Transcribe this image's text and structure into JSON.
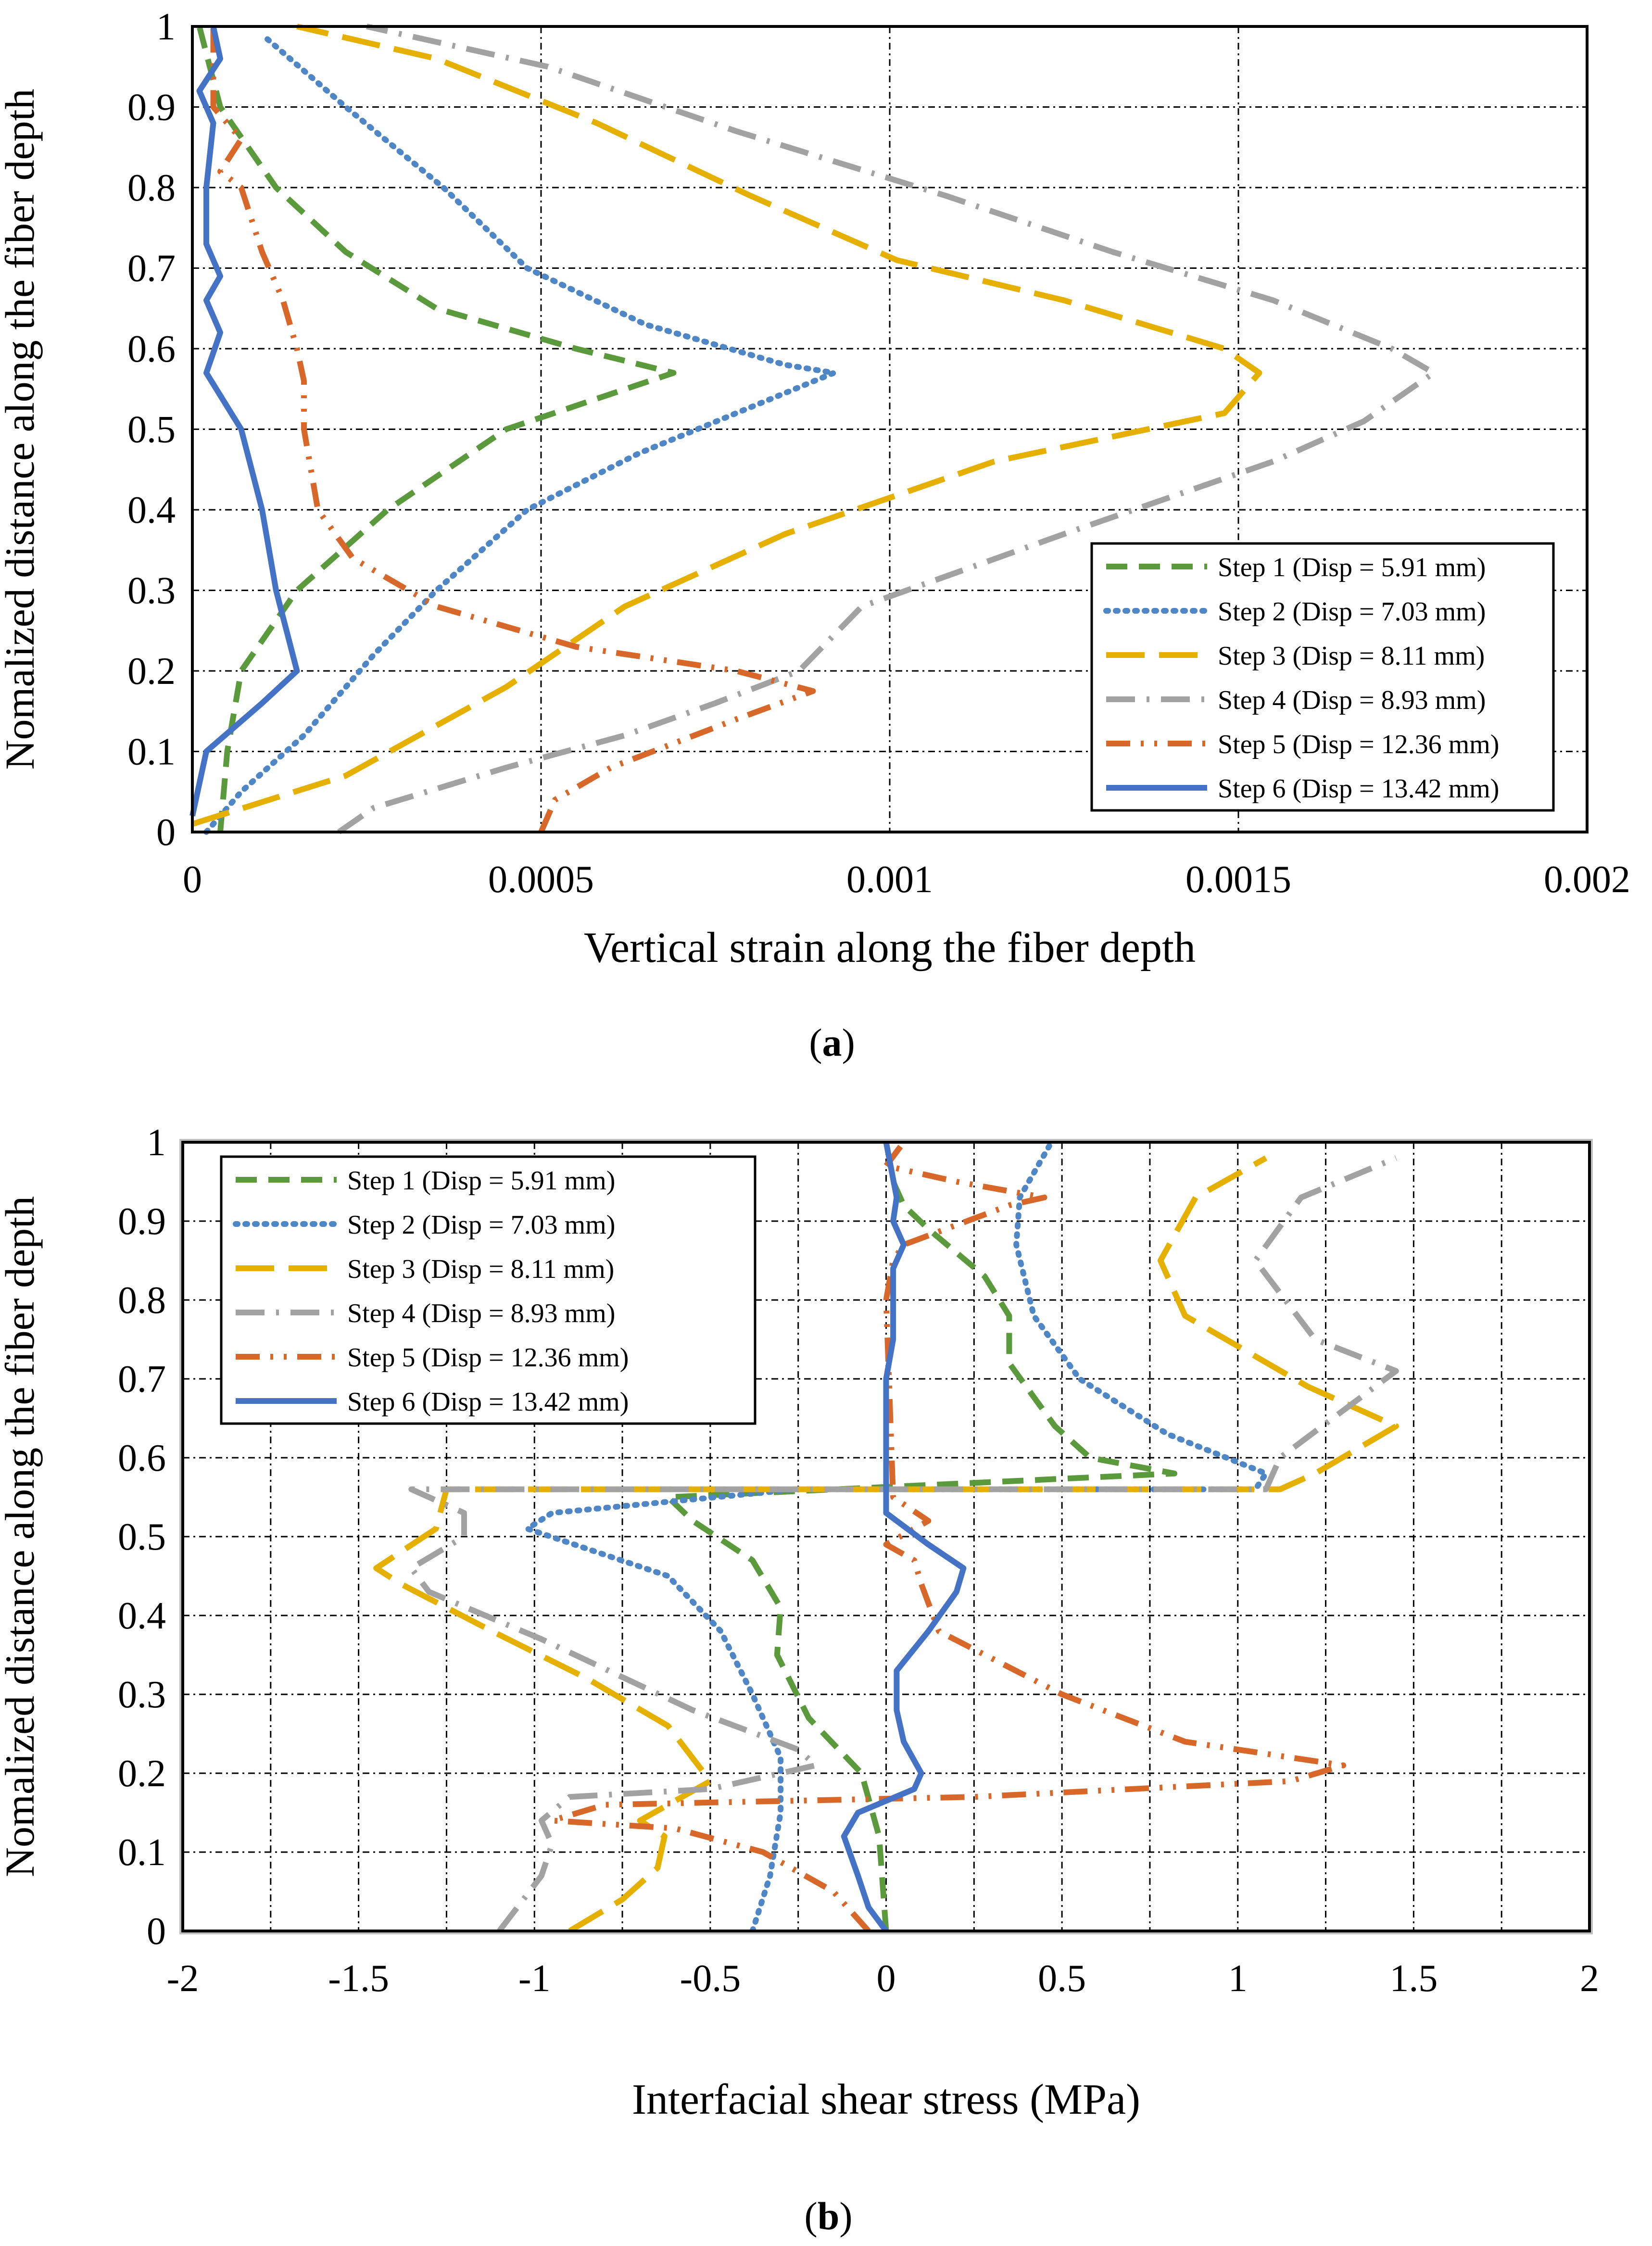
{
  "chart_data": [
    {
      "type": "line",
      "panel_label": "a",
      "xlabel": "Vertical strain along the fiber depth",
      "ylabel": "Nomalized distance along the fiber depth",
      "xlim": [
        0,
        0.002
      ],
      "ylim": [
        0,
        1
      ],
      "xticks": [
        "0",
        "0.0005",
        "0.001",
        "0.0015",
        "0.002"
      ],
      "yticks": [
        "0",
        "0.1",
        "0.2",
        "0.3",
        "0.4",
        "0.5",
        "0.6",
        "0.7",
        "0.8",
        "0.9",
        "1"
      ],
      "grid": true,
      "legend_position": "bottom-right",
      "series": [
        {
          "name": "Step 1 (Disp = 5.91 mm)",
          "color": "#5b9a3c",
          "style": "dash",
          "points": [
            [
              4e-05,
              0
            ],
            [
              5e-05,
              0.1
            ],
            [
              7e-05,
              0.2
            ],
            [
              0.00015,
              0.3
            ],
            [
              0.00028,
              0.4
            ],
            [
              0.00045,
              0.5
            ],
            [
              0.00069,
              0.57
            ],
            [
              0.00055,
              0.6
            ],
            [
              0.00035,
              0.65
            ],
            [
              0.00022,
              0.72
            ],
            [
              0.00012,
              0.8
            ],
            [
              4e-05,
              0.9
            ],
            [
              1e-05,
              1
            ]
          ]
        },
        {
          "name": "Step 2 (Disp = 7.03 mm)",
          "color": "#4f86c6",
          "style": "dot",
          "points": [
            [
              2e-05,
              0
            ],
            [
              7e-05,
              0.05
            ],
            [
              0.00016,
              0.12
            ],
            [
              0.00026,
              0.22
            ],
            [
              0.00035,
              0.3
            ],
            [
              0.00048,
              0.4
            ],
            [
              0.00064,
              0.47
            ],
            [
              0.00092,
              0.57
            ],
            [
              0.00085,
              0.58
            ],
            [
              0.00065,
              0.63
            ],
            [
              0.00048,
              0.7
            ],
            [
              0.00036,
              0.8
            ],
            [
              0.00022,
              0.9
            ],
            [
              0.0001,
              0.99
            ]
          ]
        },
        {
          "name": "Step 3 (Disp = 8.11 mm)",
          "color": "#e6b000",
          "style": "longdash",
          "points": [
            [
              0,
              0.01
            ],
            [
              0.00022,
              0.07
            ],
            [
              0.00045,
              0.18
            ],
            [
              0.00062,
              0.28
            ],
            [
              0.00085,
              0.37
            ],
            [
              0.00115,
              0.46
            ],
            [
              0.00148,
              0.52
            ],
            [
              0.00153,
              0.57
            ],
            [
              0.00148,
              0.6
            ],
            [
              0.00125,
              0.66
            ],
            [
              0.00101,
              0.71
            ],
            [
              0.0008,
              0.79
            ],
            [
              0.00058,
              0.88
            ],
            [
              0.00035,
              0.96
            ],
            [
              0.00015,
              1
            ]
          ]
        },
        {
          "name": "Step 4 (Disp = 8.93 mm)",
          "color": "#a2a2a2",
          "style": "dashdot",
          "points": [
            [
              0.00021,
              0
            ],
            [
              0.00026,
              0.03
            ],
            [
              0.00045,
              0.08
            ],
            [
              0.00062,
              0.12
            ],
            [
              0.00075,
              0.16
            ],
            [
              0.00087,
              0.2
            ],
            [
              0.00096,
              0.28
            ],
            [
              0.00125,
              0.37
            ],
            [
              0.00155,
              0.46
            ],
            [
              0.00168,
              0.51
            ],
            [
              0.00178,
              0.57
            ],
            [
              0.00172,
              0.6
            ],
            [
              0.00155,
              0.66
            ],
            [
              0.00132,
              0.72
            ],
            [
              0.00108,
              0.79
            ],
            [
              0.00078,
              0.87
            ],
            [
              0.00051,
              0.95
            ],
            [
              0.00025,
              1
            ]
          ]
        },
        {
          "name": "Step 5 (Disp = 12.36 mm)",
          "color": "#d8682a",
          "style": "dashdotdot",
          "points": [
            [
              0.0005,
              0
            ],
            [
              0.00052,
              0.04
            ],
            [
              0.0006,
              0.08
            ],
            [
              0.00078,
              0.14
            ],
            [
              0.00089,
              0.175
            ],
            [
              0.00078,
              0.2
            ],
            [
              0.00055,
              0.23
            ],
            [
              0.00035,
              0.28
            ],
            [
              0.00023,
              0.34
            ],
            [
              0.00018,
              0.4
            ],
            [
              0.00016,
              0.5
            ],
            [
              0.00016,
              0.56
            ],
            [
              0.00015,
              0.6
            ],
            [
              0.00013,
              0.66
            ],
            [
              0.0001,
              0.72
            ],
            [
              7e-05,
              0.8
            ],
            [
              4e-05,
              0.82
            ],
            [
              7e-05,
              0.86
            ],
            [
              3e-05,
              0.9
            ],
            [
              3e-05,
              0.98
            ],
            [
              3e-05,
              1
            ]
          ]
        },
        {
          "name": "Step 6 (Disp = 13.42 mm)",
          "color": "#4472c4",
          "style": "solid",
          "points": [
            [
              0,
              0.02
            ],
            [
              2e-05,
              0.1
            ],
            [
              0.0001,
              0.16
            ],
            [
              0.00015,
              0.2
            ],
            [
              0.00012,
              0.3
            ],
            [
              0.0001,
              0.4
            ],
            [
              7e-05,
              0.5
            ],
            [
              2e-05,
              0.57
            ],
            [
              4e-05,
              0.62
            ],
            [
              2e-05,
              0.66
            ],
            [
              4e-05,
              0.69
            ],
            [
              2e-05,
              0.73
            ],
            [
              2e-05,
              0.8
            ],
            [
              3e-05,
              0.88
            ],
            [
              1e-05,
              0.92
            ],
            [
              4e-05,
              0.96
            ],
            [
              3e-05,
              1
            ]
          ]
        }
      ]
    },
    {
      "type": "line",
      "panel_label": "b",
      "xlabel": "Interfacial shear stress (MPa)",
      "ylabel": "Nomalized distance along the fiber depth",
      "xlim": [
        -2,
        2
      ],
      "ylim": [
        0,
        1
      ],
      "xticks": [
        "-2",
        "-1.5",
        "-1",
        "-0.5",
        "0",
        "0.5",
        "1",
        "1.5",
        "2"
      ],
      "yticks": [
        "0",
        "0.1",
        "0.2",
        "0.3",
        "0.4",
        "0.5",
        "0.6",
        "0.7",
        "0.8",
        "0.9",
        "1"
      ],
      "grid": true,
      "legend_position": "top-left",
      "series": [
        {
          "name": "Step 1 (Disp = 5.91 mm)",
          "color": "#5b9a3c",
          "style": "dash",
          "points": [
            [
              0,
              0
            ],
            [
              -0.02,
              0.12
            ],
            [
              -0.07,
              0.2
            ],
            [
              -0.22,
              0.27
            ],
            [
              -0.31,
              0.35
            ],
            [
              -0.3,
              0.41
            ],
            [
              -0.38,
              0.47
            ],
            [
              -0.55,
              0.52
            ],
            [
              -0.62,
              0.55
            ],
            [
              0.82,
              0.58
            ],
            [
              0.58,
              0.6
            ],
            [
              0.48,
              0.64
            ],
            [
              0.35,
              0.72
            ],
            [
              0.35,
              0.78
            ],
            [
              0.28,
              0.83
            ],
            [
              0.12,
              0.89
            ],
            [
              0.05,
              0.92
            ],
            [
              0.02,
              0.95
            ]
          ]
        },
        {
          "name": "Step 2 (Disp = 7.03 mm)",
          "color": "#4f86c6",
          "style": "dot",
          "points": [
            [
              -0.38,
              0
            ],
            [
              -0.33,
              0.07
            ],
            [
              -0.3,
              0.15
            ],
            [
              -0.3,
              0.22
            ],
            [
              -0.38,
              0.3
            ],
            [
              -0.47,
              0.38
            ],
            [
              -0.62,
              0.45
            ],
            [
              -1.02,
              0.51
            ],
            [
              -0.95,
              0.53
            ],
            [
              -0.25,
              0.56
            ],
            [
              1.05,
              0.56
            ],
            [
              1.08,
              0.58
            ],
            [
              0.8,
              0.63
            ],
            [
              0.55,
              0.7
            ],
            [
              0.42,
              0.78
            ],
            [
              0.37,
              0.87
            ],
            [
              0.38,
              0.93
            ],
            [
              0.47,
              1
            ]
          ]
        },
        {
          "name": "Step 3 (Disp = 8.11 mm)",
          "color": "#e6b000",
          "style": "longdash",
          "points": [
            [
              -0.9,
              0
            ],
            [
              -0.75,
              0.04
            ],
            [
              -0.65,
              0.08
            ],
            [
              -0.63,
              0.12
            ],
            [
              -0.7,
              0.14
            ],
            [
              -0.5,
              0.19
            ],
            [
              -0.62,
              0.26
            ],
            [
              -0.85,
              0.32
            ],
            [
              -1.12,
              0.38
            ],
            [
              -1.38,
              0.44
            ],
            [
              -1.45,
              0.46
            ],
            [
              -1.28,
              0.51
            ],
            [
              -1.25,
              0.56
            ],
            [
              1.12,
              0.56
            ],
            [
              1.22,
              0.58
            ],
            [
              1.45,
              0.64
            ],
            [
              1.2,
              0.69
            ],
            [
              0.85,
              0.78
            ],
            [
              0.78,
              0.85
            ],
            [
              0.88,
              0.93
            ],
            [
              1.08,
              0.98
            ]
          ]
        },
        {
          "name": "Step 4 (Disp = 8.93 mm)",
          "color": "#a2a2a2",
          "style": "dashdot",
          "points": [
            [
              -1.1,
              0
            ],
            [
              -0.98,
              0.07
            ],
            [
              -0.95,
              0.11
            ],
            [
              -0.98,
              0.14
            ],
            [
              -0.9,
              0.17
            ],
            [
              -0.5,
              0.18
            ],
            [
              -0.2,
              0.21
            ],
            [
              -0.25,
              0.23
            ],
            [
              -0.55,
              0.28
            ],
            [
              -0.98,
              0.37
            ],
            [
              -1.3,
              0.43
            ],
            [
              -1.35,
              0.46
            ],
            [
              -1.2,
              0.5
            ],
            [
              -1.2,
              0.53
            ],
            [
              -1.35,
              0.56
            ],
            [
              1.08,
              0.56
            ],
            [
              1.12,
              0.6
            ],
            [
              1.45,
              0.71
            ],
            [
              1.22,
              0.75
            ],
            [
              1.05,
              0.85
            ],
            [
              1.18,
              0.93
            ],
            [
              1.45,
              0.98
            ]
          ]
        },
        {
          "name": "Step 5 (Disp = 12.36 mm)",
          "color": "#d8682a",
          "style": "dashdotdot",
          "points": [
            [
              -0.05,
              0
            ],
            [
              -0.15,
              0.05
            ],
            [
              -0.35,
              0.1
            ],
            [
              -0.6,
              0.13
            ],
            [
              -0.95,
              0.14
            ],
            [
              -0.8,
              0.16
            ],
            [
              0.25,
              0.17
            ],
            [
              1.15,
              0.19
            ],
            [
              1.3,
              0.21
            ],
            [
              0.85,
              0.24
            ],
            [
              0.5,
              0.3
            ],
            [
              0.15,
              0.38
            ],
            [
              0.1,
              0.44
            ],
            [
              0.08,
              0.47
            ],
            [
              0.0,
              0.49
            ],
            [
              0.12,
              0.52
            ],
            [
              0.02,
              0.55
            ],
            [
              0.0,
              0.8
            ],
            [
              0.02,
              0.85
            ],
            [
              0.05,
              0.87
            ],
            [
              0.35,
              0.92
            ],
            [
              0.45,
              0.93
            ],
            [
              0.2,
              0.95
            ],
            [
              0.0,
              0.97
            ],
            [
              0.05,
              1
            ]
          ]
        },
        {
          "name": "Step 6 (Disp = 13.42 mm)",
          "color": "#4472c4",
          "style": "solid",
          "points": [
            [
              0,
              0
            ],
            [
              -0.05,
              0.03
            ],
            [
              -0.08,
              0.07
            ],
            [
              -0.12,
              0.12
            ],
            [
              -0.08,
              0.15
            ],
            [
              0.08,
              0.18
            ],
            [
              0.1,
              0.2
            ],
            [
              0.05,
              0.24
            ],
            [
              0.03,
              0.28
            ],
            [
              0.03,
              0.33
            ],
            [
              0.12,
              0.38
            ],
            [
              0.2,
              0.43
            ],
            [
              0.22,
              0.46
            ],
            [
              0.12,
              0.49
            ],
            [
              0.0,
              0.53
            ],
            [
              0.0,
              0.7
            ],
            [
              0.02,
              0.75
            ],
            [
              0.02,
              0.84
            ],
            [
              0.05,
              0.87
            ],
            [
              0.02,
              0.9
            ],
            [
              0.03,
              0.93
            ],
            [
              0.0,
              1
            ]
          ]
        }
      ]
    }
  ]
}
